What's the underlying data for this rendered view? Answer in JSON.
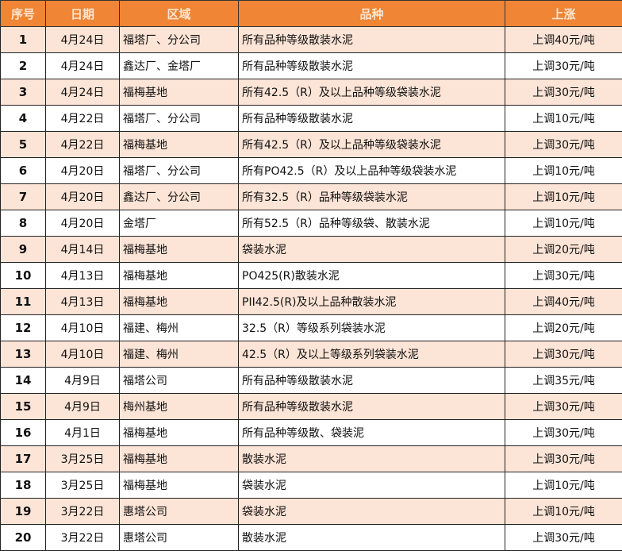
{
  "headers": [
    "序号",
    "日期",
    "区域",
    "品种",
    "上涨"
  ],
  "rows": [
    {
      "no": "1",
      "date": "4月24日",
      "region": "福塔厂、分公司",
      "product": "所有品种等级散装水泥",
      "rise": "上调40元/吨"
    },
    {
      "no": "2",
      "date": "4月24日",
      "region": "鑫达厂、金塔厂",
      "product": "所有品种等级散装水泥",
      "rise": "上调30元/吨"
    },
    {
      "no": "3",
      "date": "4月24日",
      "region": "福梅基地",
      "product": "所有42.5（R）及以上品种等级袋装水泥",
      "rise": "上调30元/吨"
    },
    {
      "no": "4",
      "date": "4月22日",
      "region": "福塔厂、分公司",
      "product": "所有品种等级散装水泥",
      "rise": "上调10元/吨"
    },
    {
      "no": "5",
      "date": "4月22日",
      "region": "福梅基地",
      "product": "所有42.5（R）及以上品种等级袋装水泥",
      "rise": "上调30元/吨"
    },
    {
      "no": "6",
      "date": "4月20日",
      "region": "福塔厂、分公司",
      "product": "所有PO42.5（R）及以上品种等级袋装水泥",
      "rise": "上调10元/吨"
    },
    {
      "no": "7",
      "date": "4月20日",
      "region": "鑫达厂、分公司",
      "product": "所有32.5（R）品种等级袋装水泥",
      "rise": "上调10元/吨"
    },
    {
      "no": "8",
      "date": "4月20日",
      "region": "金塔厂",
      "product": "所有52.5（R）品种等级袋、散装水泥",
      "rise": "上调10元/吨"
    },
    {
      "no": "9",
      "date": "4月14日",
      "region": "福梅基地",
      "product": "袋装水泥",
      "rise": "上调20元/吨"
    },
    {
      "no": "10",
      "date": "4月13日",
      "region": "福梅基地",
      "product": "PO425(R)散装水泥",
      "rise": "上调30元/吨"
    },
    {
      "no": "11",
      "date": "4月13日",
      "region": "福梅基地",
      "product": "PII42.5(R)及以上品种散装水泥",
      "rise": "上调40元/吨"
    },
    {
      "no": "12",
      "date": "4月10日",
      "region": "福建、梅州",
      "product": "32.5（R）等级系列袋装水泥",
      "rise": "上调20元/吨"
    },
    {
      "no": "13",
      "date": "4月10日",
      "region": "福建、梅州",
      "product": "42.5（R）及以上等级系列袋装水泥",
      "rise": "上调30元/吨"
    },
    {
      "no": "14",
      "date": "4月9日",
      "region": "福塔公司",
      "product": "所有品种等级散装水泥",
      "rise": "上调35元/吨"
    },
    {
      "no": "15",
      "date": "4月9日",
      "region": "梅州基地",
      "product": "所有品种等级散装水泥",
      "rise": "上调30元/吨"
    },
    {
      "no": "16",
      "date": "4月1日",
      "region": "福梅基地",
      "product": "所有品种等级散、袋装泥",
      "rise": "上调30元/吨"
    },
    {
      "no": "17",
      "date": "3月25日",
      "region": "福梅基地",
      "product": "散装水泥",
      "rise": "上调30元/吨"
    },
    {
      "no": "18",
      "date": "3月25日",
      "region": "福梅基地",
      "product": "袋装水泥",
      "rise": "上调10元/吨"
    },
    {
      "no": "19",
      "date": "3月22日",
      "region": "惠塔公司",
      "product": "袋装水泥",
      "rise": "上调10元/吨"
    },
    {
      "no": "20",
      "date": "3月22日",
      "region": "惠塔公司",
      "product": "散装水泥",
      "rise": "上调30元/吨"
    }
  ],
  "colors": {
    "header_bg": "#ef8535",
    "header_text": "#fde6d2",
    "odd_row": "#fce4d6",
    "even_row": "#ffffff"
  }
}
